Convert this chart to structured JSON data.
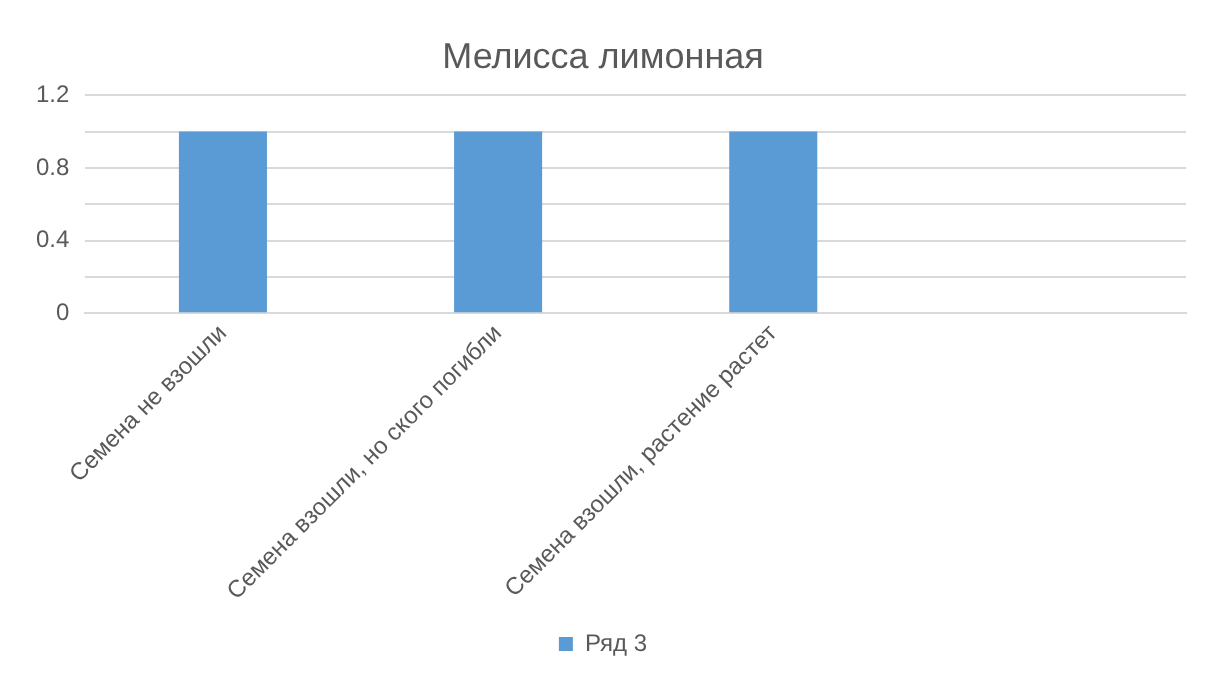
{
  "chart_data": {
    "type": "bar",
    "title": "Мелисса лимонная",
    "categories": [
      "Семена не взошли",
      "Семена взошли, но ского погибли",
      "Семена взошли, растение растет",
      null
    ],
    "series": [
      {
        "name": "Ряд 3",
        "color": "#5b9bd5",
        "values": [
          1,
          1,
          1,
          null
        ]
      }
    ],
    "ylim": [
      0,
      1.2
    ],
    "yticks": [
      0,
      {
        "value": 0.2,
        "label": null
      },
      0.4,
      {
        "value": 0.6,
        "label": null
      },
      0.8,
      {
        "value": 1,
        "label": null
      },
      1.2
    ],
    "grid": "y",
    "legend": "bottom"
  }
}
